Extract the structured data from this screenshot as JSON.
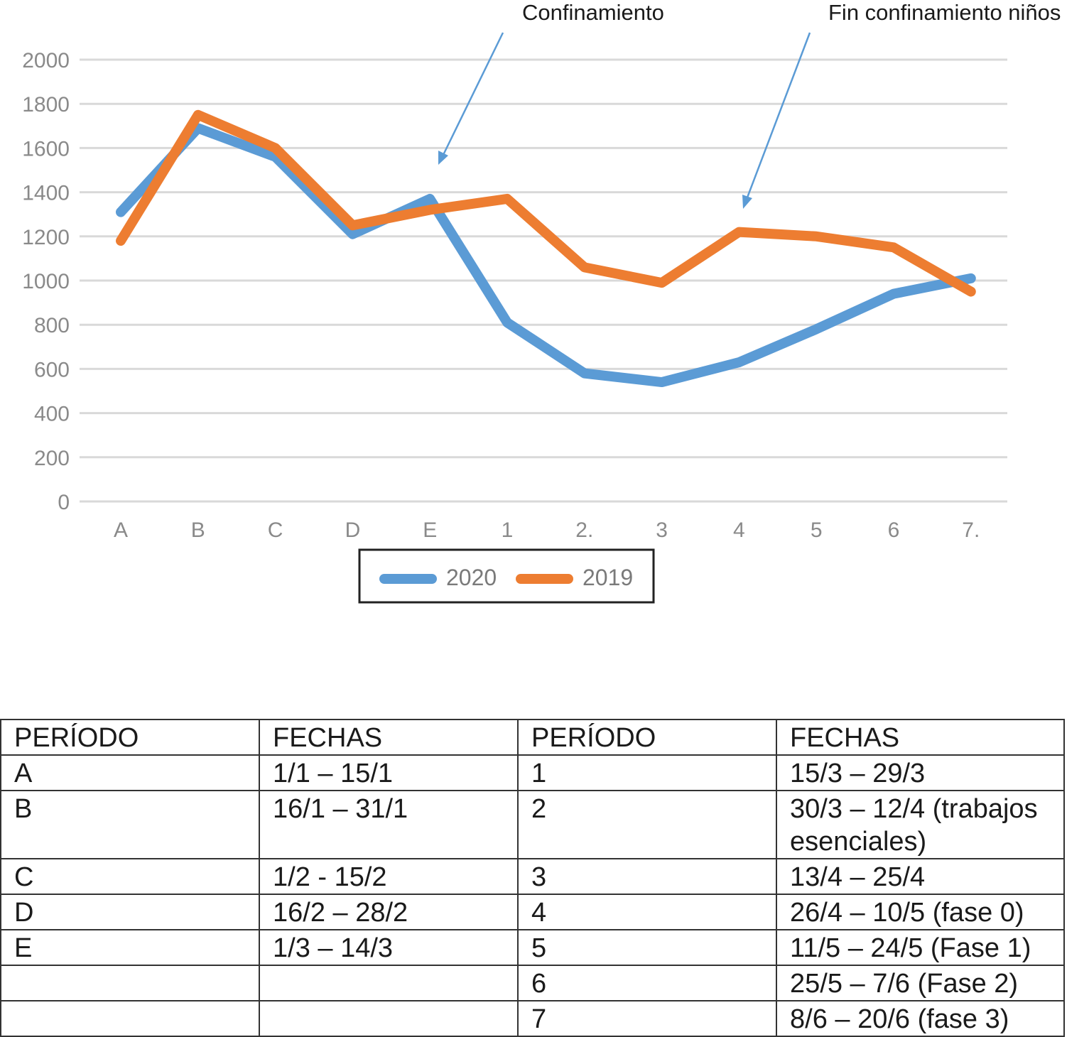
{
  "chart_data": {
    "type": "line",
    "title": "",
    "xlabel": "",
    "ylabel": "",
    "categories": [
      "A",
      "B",
      "C",
      "D",
      "E",
      "1",
      "2.",
      "3",
      "4",
      "5",
      "6",
      "7."
    ],
    "series": [
      {
        "name": "2020",
        "color": "#5b9bd5",
        "values": [
          1310,
          1690,
          1560,
          1210,
          1370,
          810,
          580,
          540,
          630,
          780,
          940,
          1010
        ]
      },
      {
        "name": "2019",
        "color": "#ed7d31",
        "values": [
          1180,
          1750,
          1600,
          1250,
          1320,
          1370,
          1060,
          990,
          1220,
          1200,
          1150,
          950
        ]
      }
    ],
    "ylim": [
      0,
      2000
    ],
    "yticks": [
      0,
      200,
      400,
      600,
      800,
      1000,
      1200,
      1400,
      1600,
      1800,
      2000
    ],
    "grid": true,
    "legend_position": "bottom",
    "annotations": [
      {
        "text": "Confinamiento",
        "near_category": "E"
      },
      {
        "text": "Fin confinamiento niños",
        "near_category": "4"
      }
    ]
  },
  "table": {
    "header": [
      "PERÍODO",
      "FECHAS",
      "PERÍODO",
      "FECHAS"
    ],
    "rows": [
      [
        "A",
        "1/1 – 15/1",
        "1",
        "15/3 – 29/3"
      ],
      [
        "B",
        "16/1 – 31/1",
        "2",
        "30/3 – 12/4 (trabajos esenciales)"
      ],
      [
        "C",
        "1/2 - 15/2",
        "3",
        "13/4 – 25/4"
      ],
      [
        "D",
        "16/2 – 28/2",
        "4",
        "26/4 – 10/5 (fase 0)"
      ],
      [
        "E",
        "1/3 – 14/3",
        "5",
        "11/5 – 24/5 (Fase 1)"
      ],
      [
        "",
        "",
        "6",
        "25/5 – 7/6 (Fase 2)"
      ],
      [
        "",
        "",
        "7",
        "8/6 – 20/6 (fase 3)"
      ]
    ]
  }
}
